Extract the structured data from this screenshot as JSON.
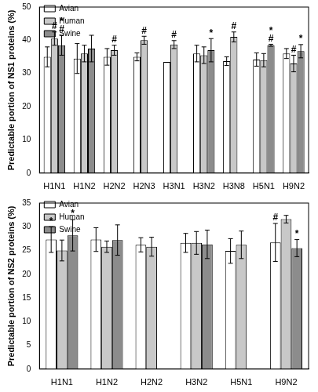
{
  "chart_data": [
    {
      "type": "bar",
      "y_label": "Predictable portion of NS1 proteins (%)",
      "categories": [
        "H1N1",
        "H1N2",
        "H2N2",
        "H2N3",
        "H3N1",
        "H3N2",
        "H3N8",
        "H5N1",
        "H9N2"
      ],
      "series": [
        {
          "name": "Avian",
          "color": "#ffffff",
          "values": [
            35,
            34.5,
            35,
            35,
            33.5,
            36,
            33.7,
            34.2,
            36
          ],
          "errors": [
            3,
            4.5,
            2.5,
            1.2,
            0,
            2.5,
            1.3,
            2,
            1.5
          ],
          "annotations": [
            null,
            null,
            null,
            null,
            null,
            null,
            null,
            null,
            null
          ]
        },
        {
          "name": "Human",
          "color": "#c8c8c8",
          "values": [
            40.5,
            36,
            37,
            40,
            38.7,
            35.5,
            41,
            34,
            33
          ],
          "errors": [
            2,
            2.5,
            1.5,
            1.2,
            1.2,
            2.5,
            1.5,
            2,
            2.5
          ],
          "annotations": [
            [
              "#"
            ],
            null,
            [
              "#"
            ],
            [
              "#"
            ],
            [
              "#"
            ],
            null,
            [
              "#"
            ],
            null,
            [
              "#"
            ]
          ]
        },
        {
          "name": "Swine",
          "color": "#8c8c8c",
          "values": [
            38.5,
            37.5,
            null,
            null,
            null,
            37,
            null,
            38.5,
            36.7
          ],
          "errors": [
            3,
            4,
            null,
            null,
            null,
            3.5,
            null,
            0.3,
            2
          ],
          "annotations": [
            [
              "*",
              "#"
            ],
            null,
            null,
            null,
            null,
            [
              "*"
            ],
            null,
            [
              "*",
              "#"
            ],
            [
              "*"
            ]
          ]
        }
      ],
      "ylim": [
        0,
        50
      ],
      "yticks": [
        0,
        10,
        20,
        30,
        40,
        50
      ],
      "grid": false,
      "legend": "top left"
    },
    {
      "type": "bar",
      "y_label": "Predictable portion of NS2 proteins (%)",
      "categories": [
        "H1N1",
        "H1N2",
        "H2N2",
        "H3N2",
        "H5N1",
        "H9N2"
      ],
      "series": [
        {
          "name": "Avian",
          "color": "#ffffff",
          "values": [
            27.3,
            27.3,
            26.2,
            26.6,
            24.9,
            26.7
          ],
          "errors": [
            2.7,
            2.5,
            1.5,
            2,
            2.6,
            4
          ],
          "annotations": [
            [
              "*"
            ],
            null,
            null,
            null,
            null,
            [
              "#"
            ]
          ]
        },
        {
          "name": "Human",
          "color": "#c8c8c8",
          "values": [
            25,
            25.8,
            25.8,
            26.6,
            26.2,
            31.6
          ],
          "errors": [
            2.2,
            1.2,
            2,
            2.4,
            2.9,
            0.8
          ],
          "annotations": [
            null,
            null,
            null,
            null,
            null,
            null
          ]
        },
        {
          "name": "Swine",
          "color": "#8c8c8c",
          "values": [
            28.2,
            27.2,
            null,
            26.3,
            null,
            25.5
          ],
          "errors": [
            3.3,
            3.2,
            null,
            3,
            null,
            1.8
          ],
          "annotations": [
            [
              "*"
            ],
            null,
            null,
            null,
            null,
            [
              "*"
            ]
          ]
        }
      ],
      "ylim": [
        0,
        35
      ],
      "yticks": [
        0,
        5,
        10,
        15,
        20,
        25,
        30,
        35
      ],
      "grid": false,
      "legend": "top left"
    }
  ]
}
